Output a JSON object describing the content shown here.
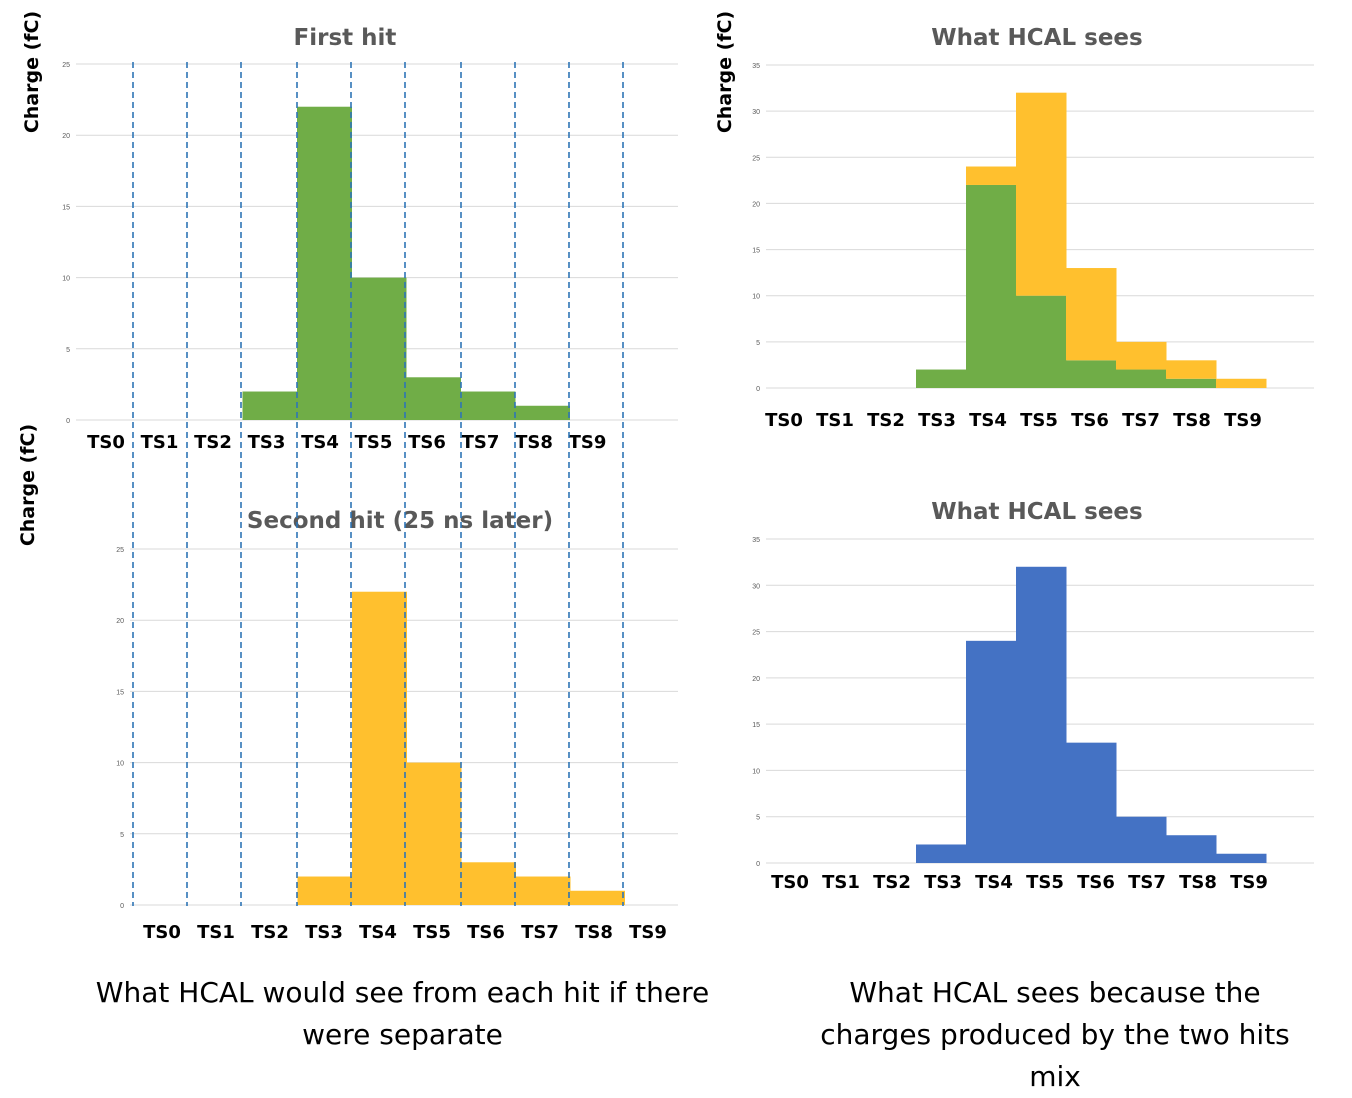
{
  "chart_data": [
    {
      "id": "first-hit",
      "type": "bar",
      "title": "First hit",
      "ylabel": "Charge (fC)",
      "ylim": [
        0,
        25
      ],
      "yticks": [
        0,
        5,
        10,
        15,
        20,
        25
      ],
      "grid": true,
      "categories": [
        "TS0",
        "TS1",
        "TS2",
        "TS3",
        "TS4",
        "TS5",
        "TS6",
        "TS7",
        "TS8",
        "TS9"
      ],
      "series": [
        {
          "color": "#70AD47",
          "values": [
            0,
            0,
            0,
            2,
            22,
            10,
            3,
            2,
            1,
            0
          ]
        }
      ]
    },
    {
      "id": "second-hit",
      "type": "bar",
      "title": "Second hit (25 ns later)",
      "ylabel": "Charge (fC)",
      "ylim": [
        0,
        25
      ],
      "yticks": [
        0,
        5,
        10,
        15,
        20,
        25
      ],
      "grid": true,
      "categories": [
        "TS0",
        "TS1",
        "TS2",
        "TS3",
        "TS4",
        "TS5",
        "TS6",
        "TS7",
        "TS8",
        "TS9"
      ],
      "series": [
        {
          "color": "#FFC02E",
          "values": [
            0,
            0,
            0,
            2,
            22,
            10,
            3,
            2,
            1,
            0
          ]
        }
      ]
    },
    {
      "id": "hcal-stacked",
      "type": "bar",
      "stacked": true,
      "title": "What HCAL sees",
      "ylabel": "Charge (fC)",
      "ylim": [
        0,
        35
      ],
      "yticks": [
        0,
        5,
        10,
        15,
        20,
        25,
        30,
        35
      ],
      "grid": true,
      "categories": [
        "TS0",
        "TS1",
        "TS2",
        "TS3",
        "TS4",
        "TS5",
        "TS6",
        "TS7",
        "TS8",
        "TS9"
      ],
      "series": [
        {
          "color": "#70AD47",
          "values": [
            0,
            0,
            0,
            2,
            22,
            10,
            3,
            2,
            1,
            0
          ]
        },
        {
          "color": "#FFC02E",
          "values": [
            0,
            0,
            0,
            0,
            2,
            22,
            10,
            3,
            2,
            1
          ]
        }
      ]
    },
    {
      "id": "hcal-total",
      "type": "bar",
      "title": "What HCAL sees",
      "ylim": [
        0,
        35
      ],
      "yticks": [
        0,
        5,
        10,
        15,
        20,
        25,
        30,
        35
      ],
      "grid": true,
      "categories": [
        "TS0",
        "TS1",
        "TS2",
        "TS3",
        "TS4",
        "TS5",
        "TS6",
        "TS7",
        "TS8",
        "TS9"
      ],
      "series": [
        {
          "color": "#4472C4",
          "values": [
            0,
            0,
            0,
            2,
            24,
            32,
            13,
            5,
            3,
            1
          ]
        }
      ]
    }
  ],
  "captions": {
    "left": "What HCAL would see from each hit if there were separate",
    "right": "What HCAL sees because the charges produced by the two hits mix"
  },
  "divider_color": "#2E75B6"
}
